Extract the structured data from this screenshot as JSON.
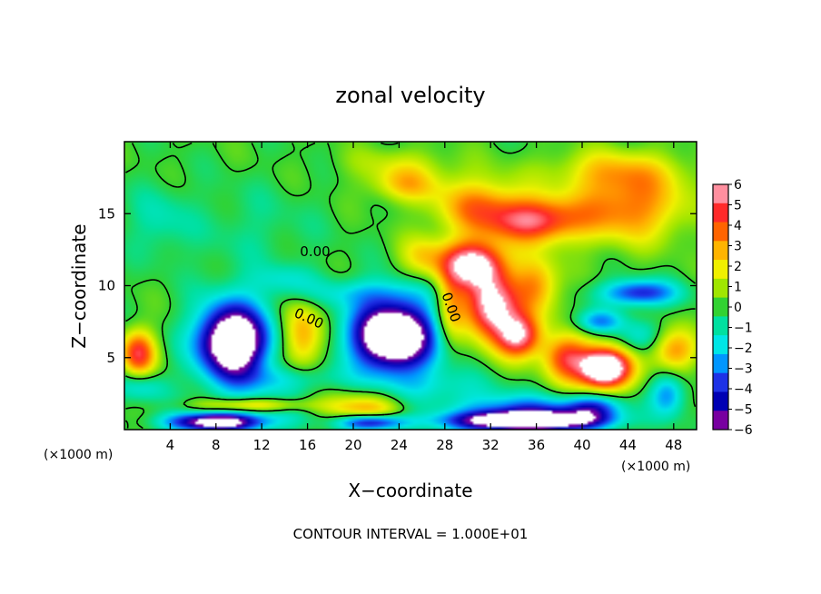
{
  "chart_data": {
    "type": "heatmap",
    "title": "zonal velocity",
    "xlabel": "X−coordinate",
    "ylabel": "Z−coordinate",
    "x_unit_left": "(×1000 m)",
    "x_unit_right": "(×1000 m)",
    "footer": "CONTOUR INTERVAL = 1.000E+01",
    "xlim": [
      0,
      50
    ],
    "ylim": [
      0,
      20
    ],
    "x_ticks": [
      4,
      8,
      12,
      16,
      20,
      24,
      28,
      32,
      36,
      40,
      44,
      48
    ],
    "y_ticks": [
      5,
      10,
      15
    ],
    "colorbar": {
      "range": [
        -6,
        6
      ],
      "ticks": [
        6,
        5,
        4,
        3,
        2,
        1,
        0,
        -1,
        -2,
        -3,
        -4,
        -5,
        -6
      ],
      "colors": [
        "#ff8f9f",
        "#ff2a2a",
        "#ff6400",
        "#ffb400",
        "#f0f000",
        "#a0e600",
        "#32d232",
        "#00e0a0",
        "#00e6e6",
        "#0096ff",
        "#1e32e6",
        "#0000b4",
        "#7800a0"
      ]
    },
    "contour_labels": [
      "0.00",
      "0.00",
      "0.00"
    ],
    "blobs": [
      {
        "x": 3,
        "z": 14.5,
        "rx": 2.5,
        "rz": 2.4,
        "v": -1.2
      },
      {
        "x": 11,
        "z": 14,
        "rx": 6,
        "rz": 3,
        "v": -0.7
      },
      {
        "x": 24,
        "z": 18.5,
        "rx": 5,
        "rz": 1.2,
        "v": 1.2
      },
      {
        "x": 24.5,
        "z": 17,
        "rx": 3,
        "rz": 1.2,
        "v": 2.5
      },
      {
        "x": 31,
        "z": 15.5,
        "rx": 4,
        "rz": 2,
        "v": 3.5
      },
      {
        "x": 36,
        "z": 14.5,
        "rx": 4,
        "rz": 1.5,
        "v": 5
      },
      {
        "x": 44,
        "z": 15.5,
        "rx": 5,
        "rz": 2.5,
        "v": 3.8
      },
      {
        "x": 43,
        "z": 18,
        "rx": 6,
        "rz": 1.5,
        "v": 2
      },
      {
        "x": 30.5,
        "z": 11.5,
        "rx": 2.8,
        "rz": 1.6,
        "v": 7
      },
      {
        "x": 32,
        "z": 8.5,
        "rx": 2.3,
        "rz": 2.2,
        "v": 7
      },
      {
        "x": 34.5,
        "z": 6.5,
        "rx": 2.0,
        "rz": 1.5,
        "v": 6
      },
      {
        "x": 28.5,
        "z": 8.5,
        "rx": 1.3,
        "rz": 2.5,
        "v": 3
      },
      {
        "x": 26,
        "z": 12,
        "rx": 2,
        "rz": 1.5,
        "v": 2.2
      },
      {
        "x": 36,
        "z": 10,
        "rx": 2,
        "rz": 2,
        "v": 3.5
      },
      {
        "x": 38.5,
        "z": 5,
        "rx": 2,
        "rz": 1.5,
        "v": 4
      },
      {
        "x": 42,
        "z": 4.3,
        "rx": 2,
        "rz": 1.2,
        "v": 7
      },
      {
        "x": 41.5,
        "z": 4.0,
        "rx": 3,
        "rz": 2.0,
        "v": 3
      },
      {
        "x": 9.5,
        "z": 6.0,
        "rx": 2.8,
        "rz": 2.3,
        "v": -7
      },
      {
        "x": 9.5,
        "z": 6.5,
        "rx": 3.6,
        "rz": 3.0,
        "v": -3
      },
      {
        "x": 15.5,
        "z": 6.5,
        "rx": 1.8,
        "rz": 2.4,
        "v": 3.5
      },
      {
        "x": 23.5,
        "z": 6.5,
        "rx": 3.2,
        "rz": 2.1,
        "v": -7
      },
      {
        "x": 23.5,
        "z": 6.5,
        "rx": 4.2,
        "rz": 3.0,
        "v": -3.5
      },
      {
        "x": 1.2,
        "z": 5.3,
        "rx": 1.5,
        "rz": 1.6,
        "v": 5
      },
      {
        "x": 1.5,
        "z": 3.0,
        "rx": 2.2,
        "rz": 1.0,
        "v": -2
      },
      {
        "x": 11,
        "z": 1.2,
        "rx": 6,
        "rz": 1.3,
        "v": -1.5
      },
      {
        "x": 11,
        "z": 1.7,
        "rx": 5,
        "rz": 0.5,
        "v": 3.5
      },
      {
        "x": 8,
        "z": 0.5,
        "rx": 4,
        "rz": 0.6,
        "v": -7
      },
      {
        "x": 21,
        "z": 1.2,
        "rx": 3.5,
        "rz": 1.4,
        "v": 3.5
      },
      {
        "x": 21.5,
        "z": 0.5,
        "rx": 3.0,
        "rz": 0.6,
        "v": -7
      },
      {
        "x": 35,
        "z": 1.0,
        "rx": 6.5,
        "rz": 1.3,
        "v": -4.5
      },
      {
        "x": 35,
        "z": 0.6,
        "rx": 6,
        "rz": 0.6,
        "v": -7
      },
      {
        "x": 41,
        "z": 1.5,
        "rx": 2.5,
        "rz": 1.0,
        "v": -4
      },
      {
        "x": 45,
        "z": 9.5,
        "rx": 3.2,
        "rz": 0.9,
        "v": -4.5
      },
      {
        "x": 41.5,
        "z": 7.5,
        "rx": 2,
        "rz": 0.8,
        "v": -3
      },
      {
        "x": 48,
        "z": 5.5,
        "rx": 2,
        "rz": 1.5,
        "v": 3.5
      },
      {
        "x": 47.5,
        "z": 2.5,
        "rx": 1.5,
        "rz": 1.5,
        "v": -3
      },
      {
        "x": 45,
        "z": 6.5,
        "rx": 2,
        "rz": 1.2,
        "v": -1.8
      },
      {
        "x": 20,
        "z": 9.5,
        "rx": 6,
        "rz": 1.0,
        "v": -1.5
      },
      {
        "x": 14,
        "z": 10.5,
        "rx": 3,
        "rz": 1.0,
        "v": -1.3
      },
      {
        "x": 14,
        "z": 3.5,
        "rx": 5,
        "rz": 1.0,
        "v": -1.8
      },
      {
        "x": 27,
        "z": 3.0,
        "rx": 5,
        "rz": 1.2,
        "v": -1.4
      }
    ]
  }
}
